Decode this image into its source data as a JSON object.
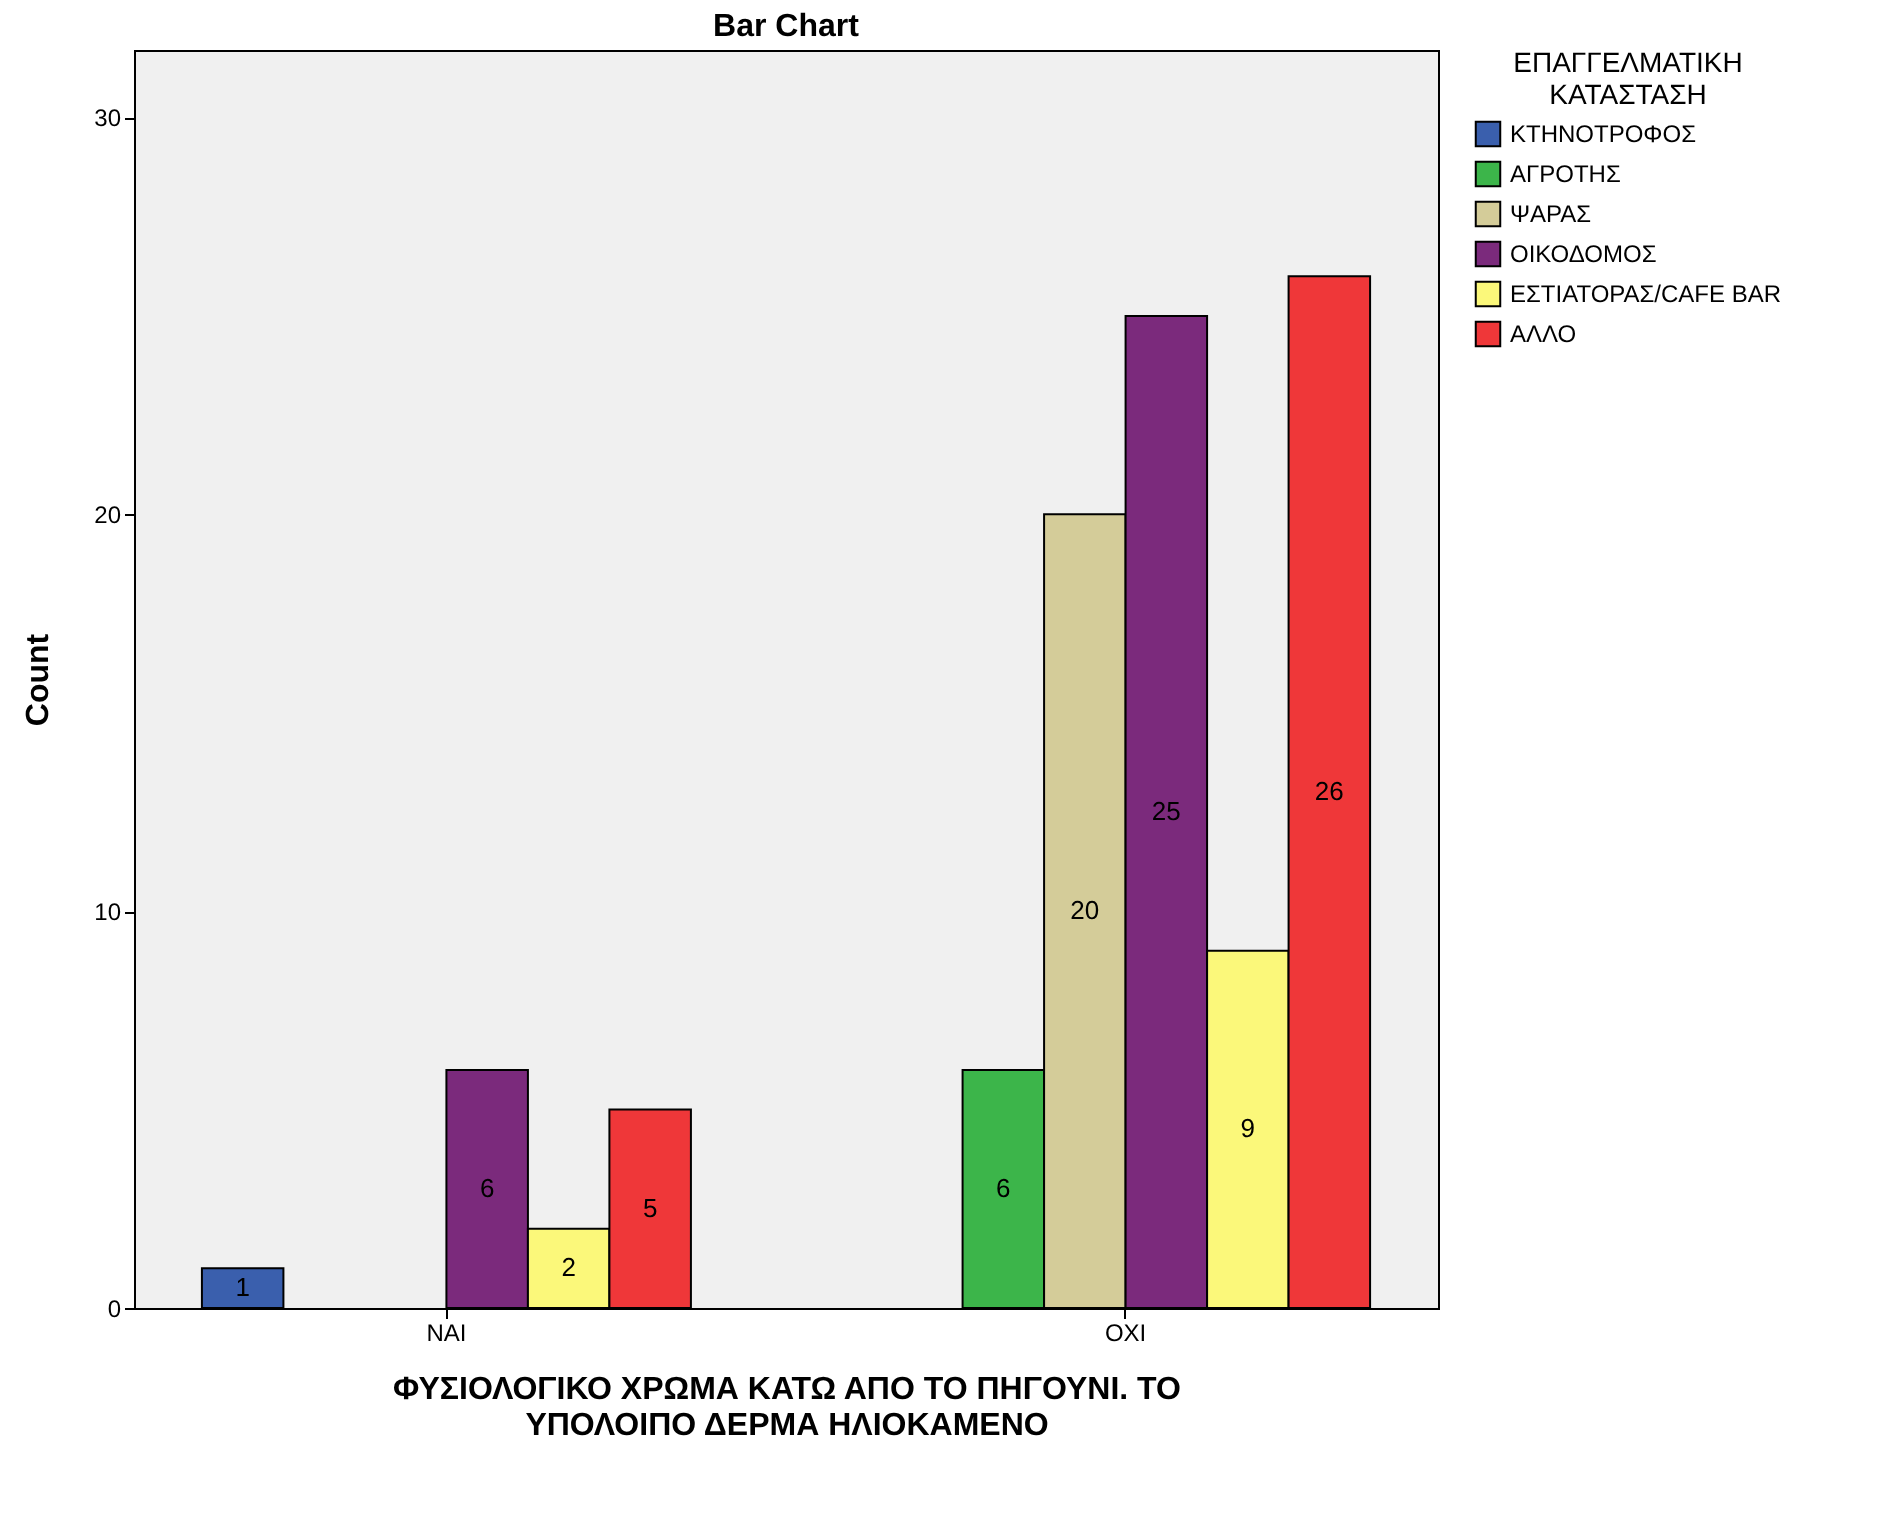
{
  "chart_data": {
    "type": "bar",
    "title": "Bar Chart",
    "xlabel": "ΦΥΣΙΟΛΟΓΙΚΟ ΧΡΩΜΑ ΚΑΤΩ ΑΠΟ ΤΟ ΠΗΓΟΥΝΙ. ΤΟ ΥΠΟΛΟΙΠΟ ΔΕΡΜΑ ΗΛΙΟΚΑΜΕΝΟ",
    "ylabel": "Count",
    "legend_title": "ΕΠΑΓΓΕΛΜΑΤΙΚΗ ΚΑΤΑΣΤΑΣΗ",
    "categories": [
      "ΝΑΙ",
      "ΟΧΙ"
    ],
    "series": [
      {
        "name": "ΚΤΗΝΟΤΡΟΦΟΣ",
        "color": "#3a5fad",
        "values": [
          1,
          null
        ]
      },
      {
        "name": "ΑΓΡΟΤΗΣ",
        "color": "#3cb54a",
        "values": [
          null,
          6
        ]
      },
      {
        "name": "ΨΑΡΑΣ",
        "color": "#d4cc99",
        "values": [
          null,
          20
        ]
      },
      {
        "name": "ΟΙΚΟΔΟΜΟΣ",
        "color": "#7b2a7c",
        "values": [
          6,
          25
        ]
      },
      {
        "name": "ΕΣΤΙΑΤΟΡΑΣ/CAFE BAR",
        "color": "#fbf87a",
        "values": [
          2,
          9
        ]
      },
      {
        "name": "ΑΛΛΟ",
        "color": "#ef3739",
        "values": [
          5,
          26
        ]
      }
    ],
    "ylim": [
      0,
      31.7
    ],
    "yticks": [
      0,
      10,
      20,
      30
    ],
    "data_labels": true,
    "legend": "top right",
    "grid": false
  }
}
